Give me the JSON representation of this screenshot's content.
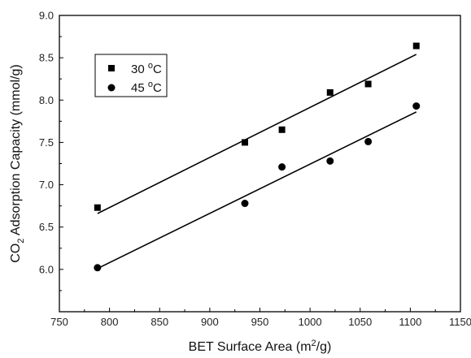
{
  "chart_data": {
    "type": "scatter",
    "xlabel": "BET Surface Area (m2/g)",
    "ylabel": "CO2 Adsorption Capacity (mmol/g)",
    "xlim": [
      750,
      1150
    ],
    "ylim": [
      5.5,
      9.0
    ],
    "x_ticks": [
      750,
      800,
      850,
      900,
      950,
      1000,
      1050,
      1100,
      1150
    ],
    "y_ticks": [
      6.0,
      6.5,
      7.0,
      7.5,
      8.0,
      8.5,
      9.0
    ],
    "grid": false,
    "legend_position": "top-left",
    "series": [
      {
        "name": "30 °C",
        "marker": "square",
        "x": [
          788,
          935,
          972,
          1020,
          1058,
          1106
        ],
        "y": [
          6.73,
          7.5,
          7.65,
          8.09,
          8.19,
          8.64
        ],
        "fit": {
          "x": [
            788,
            1106
          ],
          "y": [
            6.66,
            8.54
          ]
        }
      },
      {
        "name": "45 °C",
        "marker": "circle",
        "x": [
          788,
          935,
          972,
          1020,
          1058,
          1106
        ],
        "y": [
          6.02,
          6.78,
          7.21,
          7.28,
          7.51,
          7.93
        ],
        "fit": {
          "x": [
            788,
            1106
          ],
          "y": [
            6.01,
            7.86
          ]
        }
      }
    ]
  }
}
